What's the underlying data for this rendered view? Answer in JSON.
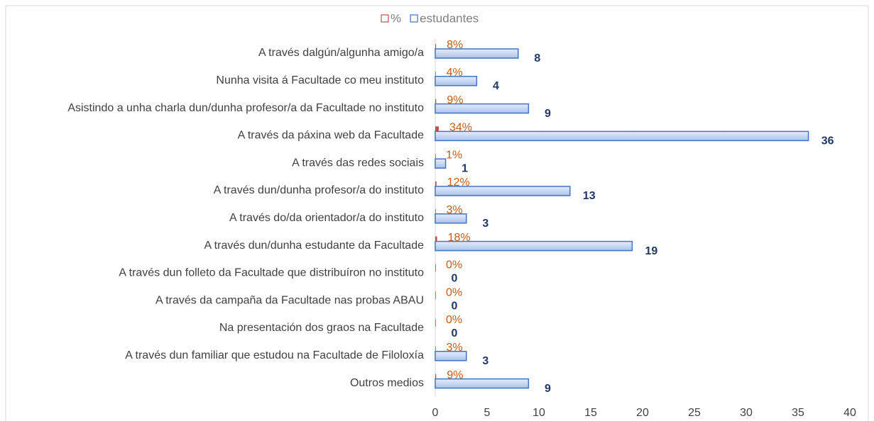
{
  "chart_data": {
    "type": "bar",
    "orientation": "horizontal",
    "categories": [
      "A través dalgún/algunha amigo/a",
      "Nunha visita á Facultade co meu instituto",
      "Asistindo a unha charla dun/dunha profesor/a da Facultade no instituto",
      "A través da páxina web da Facultade",
      "A través das redes sociais",
      "A través dun/dunha profesor/a do instituto",
      "A través do/da orientador/a do instituto",
      "A través dun/dunha estudante da Facultade",
      "A través dun folleto da Facultade que distribuíron no instituto",
      "A través da campaña da Facultade nas probas ABAU",
      "Na presentación dos graos na Facultade",
      "A través dun familiar que estudou na Facultade de Filoloxía",
      "Outros medios"
    ],
    "series": [
      {
        "name": "%",
        "color": "#c0504d",
        "label_color": "#c55a11",
        "values": [
          0.08,
          0.04,
          0.09,
          0.34,
          0.01,
          0.12,
          0.03,
          0.18,
          0,
          0,
          0,
          0.03,
          0.09
        ],
        "value_labels": [
          "8%",
          "4%",
          "9%",
          "34%",
          "1%",
          "12%",
          "3%",
          "18%",
          "0%",
          "0%",
          "0%",
          "3%",
          "9%"
        ]
      },
      {
        "name": "estudantes",
        "color": "#4472c4",
        "label_color": "#1f3864",
        "values": [
          8,
          4,
          9,
          36,
          1,
          13,
          3,
          19,
          0,
          0,
          0,
          3,
          9
        ]
      }
    ],
    "xlim": [
      0,
      40
    ],
    "xticks": [
      0,
      5,
      10,
      15,
      20,
      25,
      30,
      35,
      40
    ],
    "legend": "top",
    "grid": false
  }
}
